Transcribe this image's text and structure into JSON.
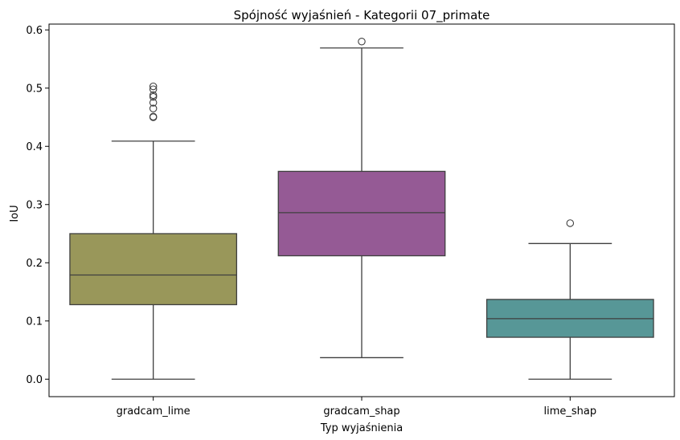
{
  "chart_data": {
    "type": "box",
    "title": "Spójność wyjaśnień - Kategorii 07_primate",
    "xlabel": "Typ wyjaśnienia",
    "ylabel": "IoU",
    "ylim": [
      -0.03,
      0.61
    ],
    "yticks": [
      0.0,
      0.1,
      0.2,
      0.3,
      0.4,
      0.5,
      0.6
    ],
    "ytick_labels": [
      "0.0",
      "0.1",
      "0.2",
      "0.3",
      "0.4",
      "0.5",
      "0.6"
    ],
    "grid": false,
    "categories": [
      "gradcam_lime",
      "gradcam_shap",
      "lime_shap"
    ],
    "boxes": [
      {
        "category": "gradcam_lime",
        "color": "#99975a",
        "whisker_low": 0.0,
        "q1": 0.128,
        "median": 0.179,
        "q3": 0.25,
        "whisker_high": 0.409,
        "outliers": [
          0.45,
          0.451,
          0.465,
          0.475,
          0.485,
          0.488,
          0.498,
          0.503
        ]
      },
      {
        "category": "gradcam_shap",
        "color": "#955a95",
        "whisker_low": 0.037,
        "q1": 0.212,
        "median": 0.286,
        "q3": 0.357,
        "whisker_high": 0.569,
        "outliers": [
          0.58
        ]
      },
      {
        "category": "lime_shap",
        "color": "#579797",
        "whisker_low": 0.0,
        "q1": 0.072,
        "median": 0.104,
        "q3": 0.137,
        "whisker_high": 0.233,
        "outliers": [
          0.268
        ]
      }
    ]
  }
}
